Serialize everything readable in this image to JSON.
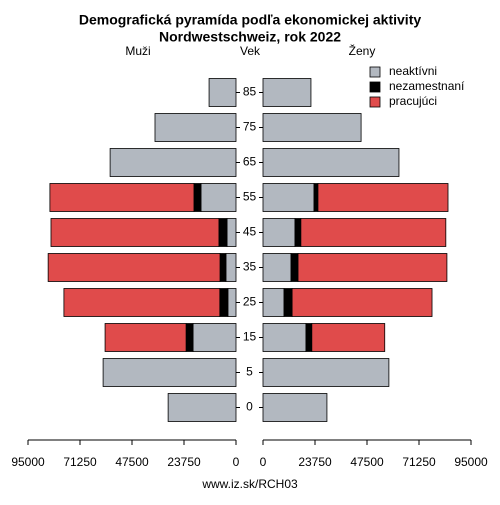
{
  "chart_data": {
    "type": "pyramid",
    "title": "Demografická pyramída podľa ekonomickej aktivity",
    "subtitle": "Nordwestschweiz, rok 2022",
    "left_label": "Muži",
    "center_label": "Vek",
    "right_label": "Ženy",
    "categories": [
      "85",
      "75",
      "65",
      "55",
      "45",
      "35",
      "25",
      "15",
      "5",
      "0"
    ],
    "series": [
      {
        "name": "neaktívni",
        "color": "#b2b8c0",
        "left": [
          12300,
          37000,
          57500,
          16000,
          4100,
          4600,
          3700,
          19600,
          60700,
          31000
        ],
        "right": [
          21900,
          44800,
          62100,
          23300,
          14600,
          12800,
          9600,
          19600,
          57500,
          29200
        ]
      },
      {
        "name": "nezamestnaní",
        "color": "#000000",
        "left": [
          null,
          null,
          null,
          3200,
          3700,
          2700,
          3700,
          3200,
          null,
          null
        ],
        "right": [
          null,
          null,
          null,
          1800,
          2700,
          3200,
          3700,
          2700,
          null,
          null
        ]
      },
      {
        "name": "pracujúci",
        "color": "#e04b4b",
        "left": [
          null,
          null,
          null,
          65800,
          76700,
          78500,
          71200,
          37000,
          null,
          null
        ],
        "right": [
          null,
          null,
          null,
          59400,
          66200,
          68000,
          63900,
          33300,
          null,
          null
        ]
      }
    ],
    "xlim": [
      0,
      95000
    ],
    "xticks": [
      0,
      23750,
      47500,
      71250,
      95000
    ],
    "footer": "www.iz.sk/RCH03"
  }
}
